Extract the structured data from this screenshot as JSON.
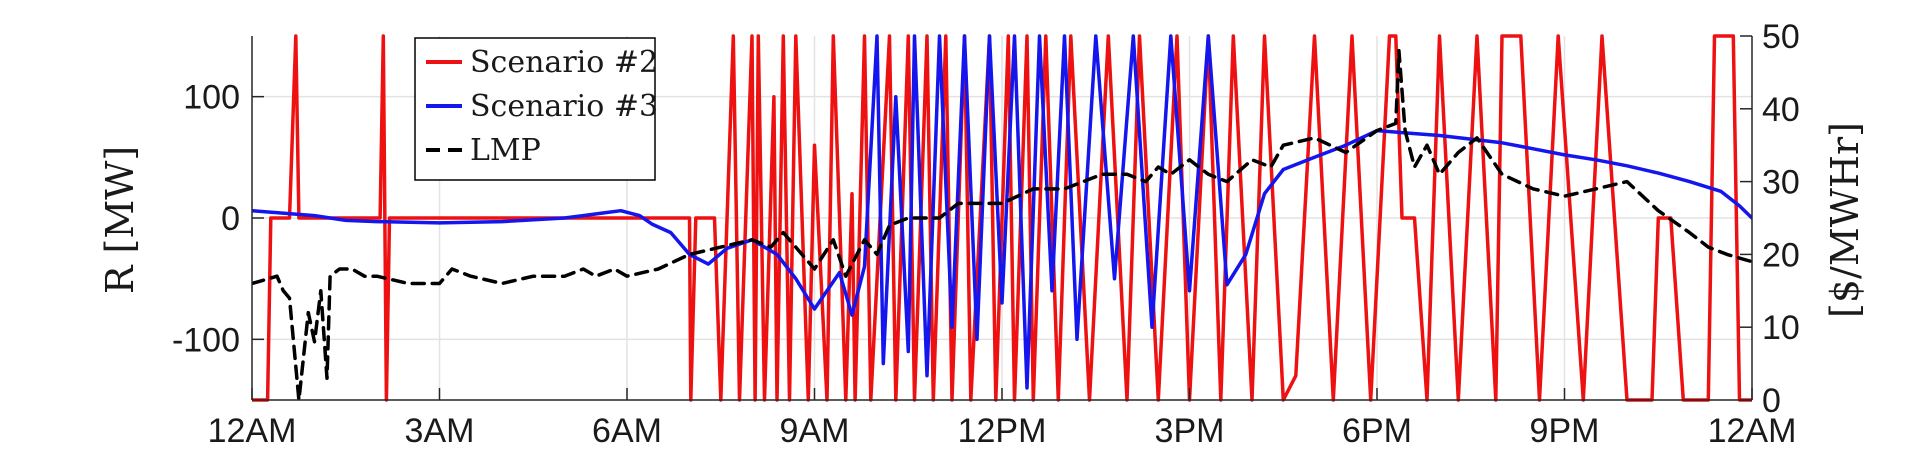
{
  "chart_data": {
    "type": "line",
    "xlabel": "",
    "ylabel_left": "R [MW]",
    "ylabel_right": "[$/MWHr]",
    "x_ticks": [
      "12AM",
      "3AM",
      "6AM",
      "9AM",
      "12PM",
      "3PM",
      "6PM",
      "9PM",
      "12AM"
    ],
    "x_range_hours": [
      0,
      24
    ],
    "y_left": {
      "range": [
        -150,
        150
      ],
      "ticks": [
        100,
        0,
        -100
      ],
      "tick_labels": [
        "100",
        "0",
        "-100"
      ]
    },
    "y_right": {
      "range": [
        0,
        50
      ],
      "ticks": [
        50,
        40,
        30,
        20,
        10,
        0
      ],
      "tick_labels": [
        "50",
        "40",
        "30",
        "20",
        "10",
        "0"
      ]
    },
    "grid": true,
    "legend": "top-left",
    "series": [
      {
        "name": "Scenario #2",
        "axis": "left",
        "color": "#ee1111",
        "style": "solid",
        "x": [
          0,
          0.25,
          0.3,
          0.6,
          0.7,
          0.75,
          0.8,
          0.9,
          2.05,
          2.1,
          2.15,
          2.2,
          7.0,
          7.02,
          7.1,
          7.4,
          7.5,
          7.7,
          7.8,
          8.0,
          8.05,
          8.1,
          8.2,
          8.35,
          8.4,
          8.5,
          8.6,
          8.7,
          8.9,
          9.0,
          9.2,
          9.3,
          9.5,
          9.6,
          9.65,
          9.8,
          9.9,
          10.2,
          10.3,
          10.5,
          10.6,
          10.8,
          10.9,
          11.1,
          11.2,
          11.4,
          11.5,
          11.8,
          11.9,
          12.1,
          12.2,
          12.4,
          12.5,
          12.7,
          12.9,
          13.1,
          13.4,
          13.7,
          14.0,
          14.2,
          14.5,
          14.8,
          15.0,
          15.3,
          15.5,
          15.7,
          16.0,
          16.2,
          16.5,
          16.7,
          17.0,
          17.3,
          17.6,
          17.9,
          18.2,
          18.3,
          18.4,
          18.6,
          18.8,
          19.0,
          19.3,
          19.6,
          19.9,
          20.0,
          20.3,
          20.6,
          20.9,
          21.3,
          21.6,
          22.0,
          22.4,
          22.5,
          22.7,
          22.9,
          23.3,
          23.4,
          23.7,
          23.8,
          24.0
        ],
        "y": [
          -150,
          -150,
          0,
          0,
          150,
          0,
          0,
          0,
          0,
          150,
          -150,
          0,
          0,
          -150,
          0,
          0,
          -150,
          150,
          -150,
          150,
          -150,
          150,
          -150,
          100,
          -150,
          150,
          -150,
          150,
          -150,
          60,
          -150,
          150,
          -150,
          20,
          -150,
          150,
          -150,
          150,
          -150,
          150,
          -150,
          150,
          -150,
          150,
          -150,
          150,
          -150,
          150,
          -150,
          150,
          -150,
          150,
          -150,
          150,
          -150,
          150,
          -150,
          150,
          -150,
          150,
          -150,
          150,
          -150,
          150,
          -150,
          150,
          -150,
          150,
          -150,
          -130,
          150,
          -150,
          150,
          -150,
          150,
          150,
          0,
          0,
          -150,
          150,
          -150,
          150,
          -150,
          150,
          150,
          -150,
          150,
          -150,
          150,
          -150,
          -150,
          0,
          0,
          -150,
          -150,
          150,
          150,
          -150,
          -150
        ]
      },
      {
        "name": "Scenario #3",
        "axis": "left",
        "color": "#1515ee",
        "style": "solid",
        "x": [
          0,
          1,
          1.5,
          2,
          3,
          4,
          5,
          5.3,
          5.6,
          5.9,
          6.2,
          6.4,
          6.7,
          7.0,
          7.3,
          7.6,
          8.0,
          8.4,
          8.7,
          9.0,
          9.2,
          9.4,
          9.6,
          9.8,
          10.0,
          10.1,
          10.3,
          10.5,
          10.6,
          10.8,
          11.0,
          11.2,
          11.4,
          11.6,
          11.8,
          12.0,
          12.2,
          12.4,
          12.6,
          12.8,
          13.0,
          13.2,
          13.5,
          13.8,
          14.1,
          14.4,
          14.7,
          15.0,
          15.3,
          15.6,
          15.9,
          16.2,
          16.5,
          17.0,
          17.5,
          18.0,
          18.5,
          19.0,
          19.5,
          20.0,
          20.5,
          21.0,
          21.5,
          22.0,
          22.5,
          23.0,
          23.5,
          23.8,
          24.0
        ],
        "y": [
          6,
          2,
          -2,
          -3,
          -4,
          -3,
          0,
          2,
          4,
          6,
          2,
          -5,
          -12,
          -30,
          -38,
          -25,
          -18,
          -30,
          -50,
          -75,
          -60,
          -45,
          -80,
          -40,
          150,
          -120,
          100,
          -110,
          150,
          -130,
          150,
          -90,
          150,
          -100,
          150,
          -70,
          150,
          -140,
          150,
          -60,
          150,
          -100,
          150,
          -50,
          150,
          -90,
          150,
          -60,
          150,
          -55,
          -30,
          20,
          40,
          50,
          60,
          72,
          70,
          68,
          65,
          62,
          57,
          52,
          48,
          43,
          37,
          30,
          22,
          10,
          0
        ]
      },
      {
        "name": "LMP",
        "axis": "right",
        "color": "#000000",
        "style": "dashed",
        "x": [
          0,
          0.4,
          0.5,
          0.6,
          0.75,
          0.9,
          1.0,
          1.1,
          1.2,
          1.25,
          1.4,
          1.6,
          1.8,
          2.0,
          2.5,
          3.0,
          3.2,
          3.5,
          4.0,
          4.5,
          5.0,
          5.3,
          5.5,
          5.8,
          6.0,
          6.5,
          7.0,
          7.5,
          8.0,
          8.3,
          8.5,
          9.0,
          9.3,
          9.5,
          9.8,
          10.0,
          10.2,
          10.5,
          11.0,
          11.3,
          11.6,
          12.0,
          12.5,
          13.0,
          13.3,
          13.6,
          14.0,
          14.3,
          14.5,
          14.7,
          15.0,
          15.3,
          15.6,
          16.0,
          16.3,
          16.5,
          17.0,
          17.5,
          18.0,
          18.3,
          18.35,
          18.45,
          18.6,
          18.8,
          19.0,
          19.3,
          19.6,
          20.0,
          20.5,
          21.0,
          21.5,
          22.0,
          22.5,
          23.0,
          23.3,
          23.6,
          24.0
        ],
        "y": [
          16,
          17,
          15,
          14,
          0,
          12,
          8,
          15,
          3,
          17,
          18,
          18,
          17,
          17,
          16,
          16,
          18,
          17,
          16,
          17,
          17,
          18,
          17,
          18,
          17,
          18,
          20,
          21,
          22,
          21,
          23,
          18,
          22,
          17,
          22,
          20,
          24,
          25,
          25,
          27,
          27,
          27,
          29,
          29,
          30,
          31,
          31,
          30,
          32,
          31,
          33,
          31,
          30,
          33,
          32,
          35,
          36,
          34,
          37,
          38,
          48,
          37,
          32,
          35,
          31,
          34,
          36,
          31,
          29,
          28,
          29,
          30,
          26,
          23,
          21,
          20,
          19
        ]
      }
    ]
  }
}
